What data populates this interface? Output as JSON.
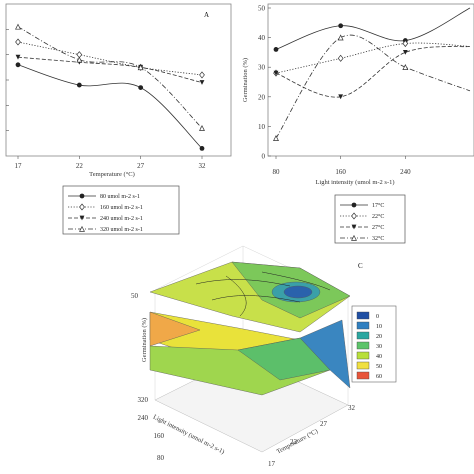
{
  "chart_data": [
    {
      "type": "line",
      "panel_label": "A",
      "xlabel": "Temperature (°C)",
      "x": [
        17,
        22,
        27,
        32
      ],
      "ylim": [
        0,
        60
      ],
      "yticks": [
        10,
        20,
        30,
        40,
        50
      ],
      "yticks_show_labels": false,
      "series": [
        {
          "name": "80 umol m-2 s-1",
          "marker": "filled-circle",
          "dash": "solid",
          "values": [
            36,
            28,
            27,
            3
          ]
        },
        {
          "name": "160 umol m-2 s-1",
          "marker": "open-diamond",
          "dash": "dotted",
          "values": [
            45,
            40,
            35,
            32
          ]
        },
        {
          "name": "240 umol m-2 s-1",
          "marker": "filled-triangle-down",
          "dash": "dashed",
          "values": [
            39,
            37,
            35,
            29
          ]
        },
        {
          "name": "320 umol m-2 s-1",
          "marker": "open-triangle-up",
          "dash": "dashdot",
          "values": [
            51,
            38,
            35,
            11
          ]
        }
      ]
    },
    {
      "type": "line",
      "panel_label": "",
      "xlabel": "Light intensity (umol m-2 s-1)",
      "ylabel": "Germination (%)",
      "x": [
        80,
        160,
        240,
        320
      ],
      "xticks_shown": [
        80,
        160,
        240
      ],
      "ylim": [
        0,
        50
      ],
      "yticks": [
        0,
        10,
        20,
        30,
        40,
        50
      ],
      "series": [
        {
          "name": "17°C",
          "marker": "filled-circle",
          "dash": "solid",
          "values": [
            36,
            44,
            39,
            50
          ]
        },
        {
          "name": "22°C",
          "marker": "open-diamond",
          "dash": "dotted",
          "values": [
            28,
            33,
            38,
            37
          ]
        },
        {
          "name": "27°C",
          "marker": "filled-triangle-down",
          "dash": "dashed",
          "values": [
            28,
            20,
            35,
            37
          ]
        },
        {
          "name": "32°C",
          "marker": "open-triangle-up",
          "dash": "dashdot",
          "values": [
            6,
            40,
            30,
            22
          ]
        }
      ]
    },
    {
      "type": "surface",
      "panel_label": "C",
      "zlabel": "Germination (%)",
      "xlabel": "Light intensity (umol m-2 s-1)",
      "ylabel": "Temperature (°C)",
      "light_ticks": [
        80,
        160,
        240,
        320
      ],
      "temperature_ticks": [
        17,
        22,
        27,
        32
      ],
      "z_tick_label": "50",
      "colorbar": {
        "labels": [
          "0",
          "10",
          "20",
          "30",
          "40",
          "50",
          "60"
        ],
        "colors": [
          "#1f4fa3",
          "#2f7fc0",
          "#2aa6a0",
          "#5cc46a",
          "#b8df3a",
          "#f0e040",
          "#e8553a"
        ]
      }
    }
  ],
  "legend_a": [
    "80 umol m-2 s-1",
    "160 umol m-2 s-1",
    "240 umol m-2 s-1",
    "320 umol m-2 s-1"
  ],
  "legend_b": [
    "17°C",
    "22°C",
    "27°C",
    "32°C"
  ]
}
